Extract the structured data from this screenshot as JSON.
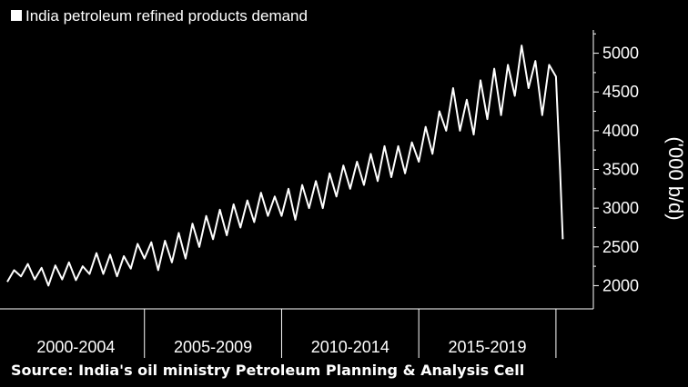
{
  "chart_data": {
    "type": "line",
    "title": "",
    "legend": [
      {
        "name": "India petroleum refined products demand",
        "color": "#ffffff"
      }
    ],
    "ylabel": "('000 b/d)",
    "xlabel": "",
    "source": "Source: India's oil ministry Petroleum Planning & Analysis Cell",
    "ylim": [
      1700,
      5300
    ],
    "yticks": [
      2000,
      2500,
      3000,
      3500,
      4000,
      4500,
      5000
    ],
    "x_period_labels": [
      "2000-2004",
      "2005-2009",
      "2010-2014",
      "2015-2019"
    ],
    "x_range_years": [
      2000,
      2020.7
    ],
    "grid": false,
    "legend_position": "top-left",
    "series": [
      {
        "name": "India petroleum refined products demand",
        "color": "#ffffff",
        "points": [
          [
            2000.0,
            2050
          ],
          [
            2000.25,
            2200
          ],
          [
            2000.5,
            2120
          ],
          [
            2000.75,
            2280
          ],
          [
            2001.0,
            2080
          ],
          [
            2001.25,
            2230
          ],
          [
            2001.5,
            2000
          ],
          [
            2001.75,
            2260
          ],
          [
            2002.0,
            2080
          ],
          [
            2002.25,
            2300
          ],
          [
            2002.5,
            2070
          ],
          [
            2002.75,
            2250
          ],
          [
            2003.0,
            2150
          ],
          [
            2003.25,
            2420
          ],
          [
            2003.5,
            2150
          ],
          [
            2003.75,
            2400
          ],
          [
            2004.0,
            2120
          ],
          [
            2004.25,
            2380
          ],
          [
            2004.5,
            2220
          ],
          [
            2004.75,
            2540
          ],
          [
            2005.0,
            2350
          ],
          [
            2005.25,
            2560
          ],
          [
            2005.5,
            2200
          ],
          [
            2005.75,
            2580
          ],
          [
            2006.0,
            2300
          ],
          [
            2006.25,
            2680
          ],
          [
            2006.5,
            2350
          ],
          [
            2006.75,
            2800
          ],
          [
            2007.0,
            2500
          ],
          [
            2007.25,
            2900
          ],
          [
            2007.5,
            2600
          ],
          [
            2007.75,
            2980
          ],
          [
            2008.0,
            2650
          ],
          [
            2008.25,
            3050
          ],
          [
            2008.5,
            2750
          ],
          [
            2008.75,
            3100
          ],
          [
            2009.0,
            2820
          ],
          [
            2009.25,
            3200
          ],
          [
            2009.5,
            2900
          ],
          [
            2009.75,
            3150
          ],
          [
            2010.0,
            2900
          ],
          [
            2010.25,
            3250
          ],
          [
            2010.5,
            2850
          ],
          [
            2010.75,
            3300
          ],
          [
            2011.0,
            3000
          ],
          [
            2011.25,
            3350
          ],
          [
            2011.5,
            3000
          ],
          [
            2011.75,
            3450
          ],
          [
            2012.0,
            3150
          ],
          [
            2012.25,
            3550
          ],
          [
            2012.5,
            3250
          ],
          [
            2012.75,
            3600
          ],
          [
            2013.0,
            3300
          ],
          [
            2013.25,
            3700
          ],
          [
            2013.5,
            3350
          ],
          [
            2013.75,
            3800
          ],
          [
            2014.0,
            3400
          ],
          [
            2014.25,
            3800
          ],
          [
            2014.5,
            3450
          ],
          [
            2014.75,
            3850
          ],
          [
            2015.0,
            3600
          ],
          [
            2015.25,
            4050
          ],
          [
            2015.5,
            3700
          ],
          [
            2015.75,
            4250
          ],
          [
            2016.0,
            4000
          ],
          [
            2016.25,
            4550
          ],
          [
            2016.5,
            4000
          ],
          [
            2016.75,
            4400
          ],
          [
            2017.0,
            3950
          ],
          [
            2017.25,
            4650
          ],
          [
            2017.5,
            4150
          ],
          [
            2017.75,
            4800
          ],
          [
            2018.0,
            4200
          ],
          [
            2018.25,
            4850
          ],
          [
            2018.5,
            4450
          ],
          [
            2018.75,
            5100
          ],
          [
            2019.0,
            4550
          ],
          [
            2019.25,
            4900
          ],
          [
            2019.5,
            4200
          ],
          [
            2019.75,
            4850
          ],
          [
            2020.0,
            4700
          ],
          [
            2020.15,
            3500
          ],
          [
            2020.25,
            2600
          ]
        ]
      }
    ]
  }
}
